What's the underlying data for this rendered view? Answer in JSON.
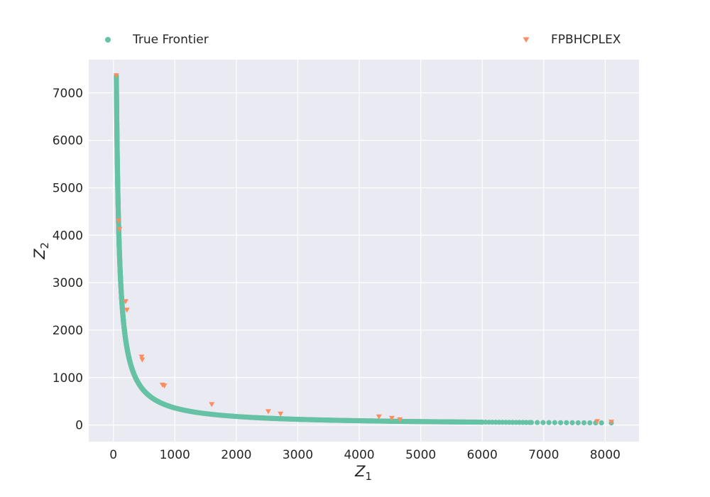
{
  "chart_data": {
    "type": "scatter",
    "title": "",
    "xlabel": "Z",
    "xlabel_subscript": "1",
    "ylabel": "Z",
    "ylabel_subscript": "2",
    "xlim": [
      -400,
      8550
    ],
    "ylim": [
      -350,
      7700
    ],
    "x_ticks": [
      0,
      1000,
      2000,
      3000,
      4000,
      5000,
      6000,
      7000,
      8000
    ],
    "y_ticks": [
      0,
      1000,
      2000,
      3000,
      4000,
      5000,
      6000,
      7000
    ],
    "grid": true,
    "legend_placement": "top, above plot, spread",
    "colors": {
      "background": "#eaeaf2",
      "grid": "#ffffff",
      "true_frontier": "#66c2a5",
      "fpbhcplex": "#fc8d62"
    },
    "series": [
      {
        "name": "True Frontier",
        "marker": "circle",
        "color": "#66c2a5",
        "product_constant": 360000,
        "x_range": [
          48,
          8100
        ],
        "x_sparse_start": 6000
      },
      {
        "name": "FPBHCPLEX",
        "marker": "triangle-down",
        "color": "#fc8d62",
        "points": [
          [
            48,
            7360
          ],
          [
            85,
            4300
          ],
          [
            100,
            4120
          ],
          [
            200,
            2600
          ],
          [
            220,
            2420
          ],
          [
            460,
            1430
          ],
          [
            470,
            1370
          ],
          [
            800,
            840
          ],
          [
            830,
            820
          ],
          [
            1600,
            430
          ],
          [
            2520,
            280
          ],
          [
            2720,
            230
          ],
          [
            4320,
            170
          ],
          [
            4530,
            140
          ],
          [
            4660,
            110
          ],
          [
            7870,
            70
          ],
          [
            8100,
            60
          ]
        ]
      }
    ]
  }
}
